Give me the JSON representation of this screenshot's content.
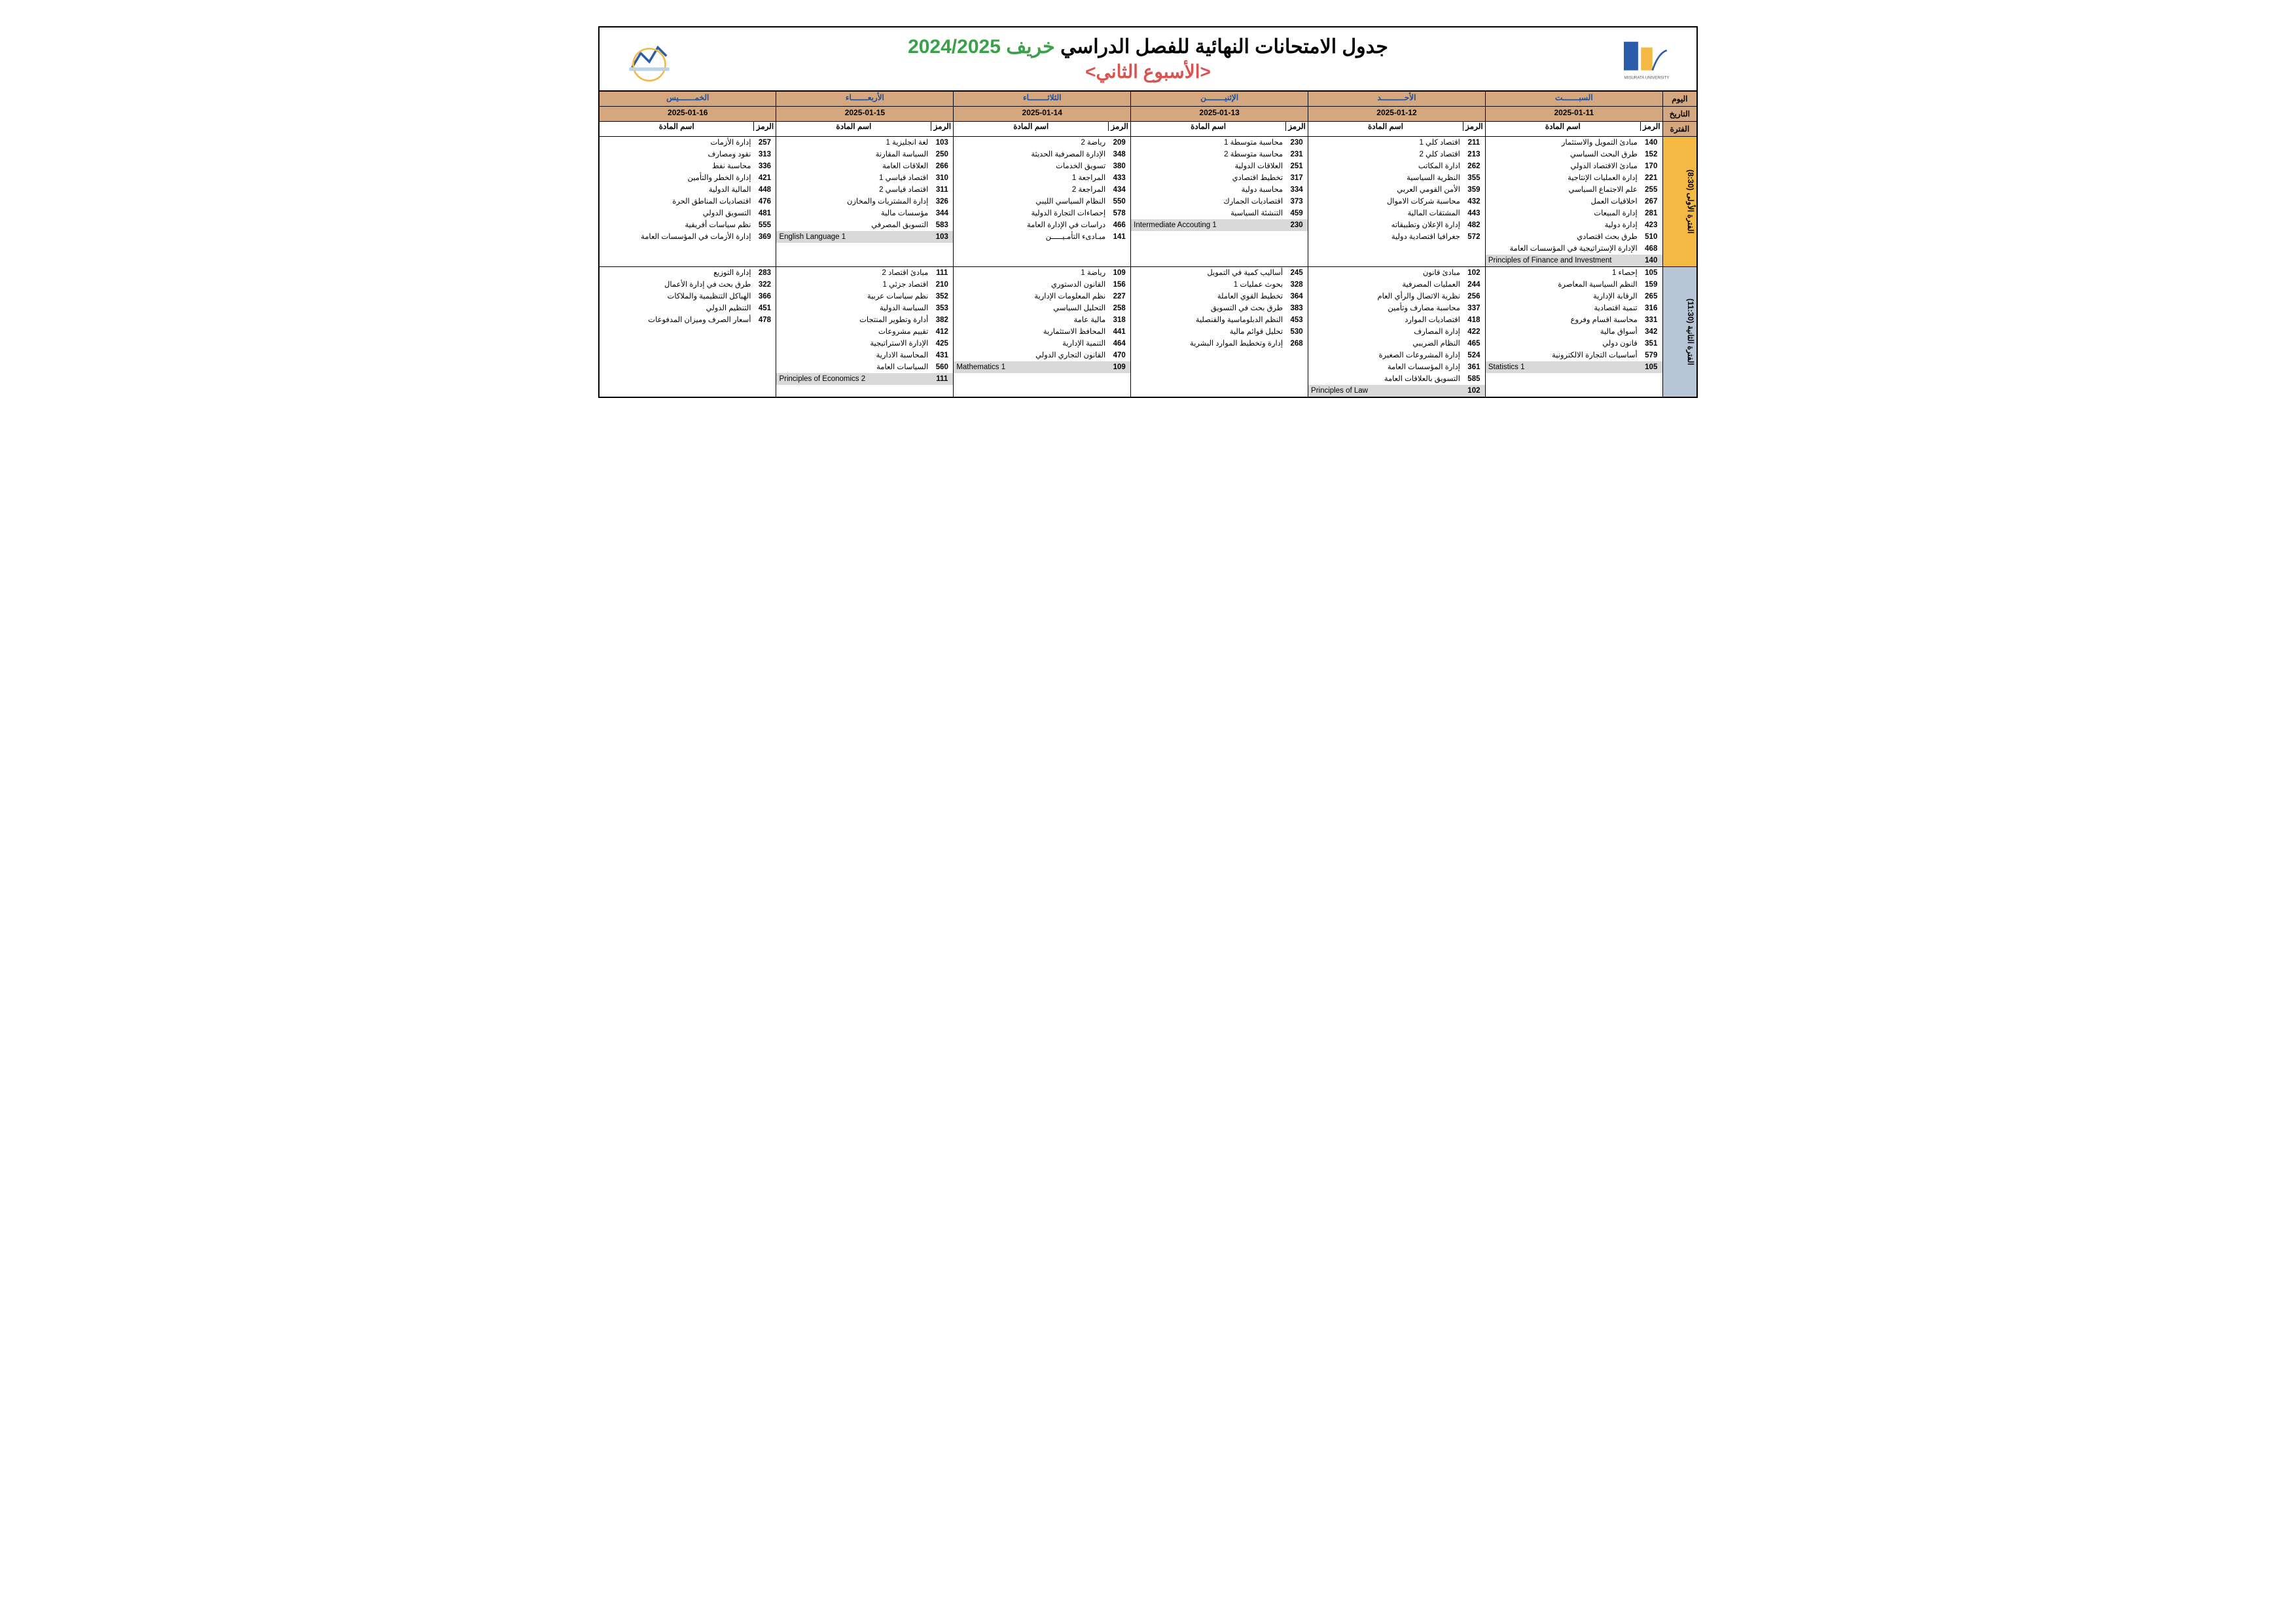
{
  "title_main": "جدول الامتحانات النهائية للفصل الدراسي",
  "title_semester": "خريف 2024/2025",
  "title_week": "الأسبوع الثاني",
  "hdr_day": "اليوم",
  "hdr_date": "التاريخ",
  "hdr_period": "الفترة",
  "hdr_code": "الرمز",
  "hdr_subject": "اسم المادة",
  "colors": {
    "header_bg": "#d5a77e",
    "day_text": "#1e4e9c",
    "semester_text": "#3aa04a",
    "week_text": "#d9534f",
    "period1_bg": "#f4b942",
    "period2_bg": "#b8c5d6",
    "english_row_bg": "#d9d9d9",
    "border": "#000000"
  },
  "days": [
    {
      "name": "السبـــــــت",
      "date": "2025-01-11"
    },
    {
      "name": "الأحــــــــــد",
      "date": "2025-01-12"
    },
    {
      "name": "الإثنيــــــــن",
      "date": "2025-01-13"
    },
    {
      "name": "الثلاثــــــــاء",
      "date": "2025-01-14"
    },
    {
      "name": "الأربعـــــــاء",
      "date": "2025-01-15"
    },
    {
      "name": "الخمـــــــيس",
      "date": "2025-01-16"
    }
  ],
  "periods": [
    {
      "label": "الفترة الأولى (8:30)",
      "bg": "#f4b942",
      "cells": [
        [
          {
            "c": "140",
            "n": "مبادئ التمويل والاستثمار"
          },
          {
            "c": "152",
            "n": "طرق البحث السياسي"
          },
          {
            "c": "170",
            "n": "مبادئ الاقتصاد الدولي"
          },
          {
            "c": "221",
            "n": "إدارة العمليات الإنتاجية"
          },
          {
            "c": "255",
            "n": "علم الاجتماع السياسي"
          },
          {
            "c": "267",
            "n": "اخلاقيات العمل"
          },
          {
            "c": "281",
            "n": "إدارة المبيعات"
          },
          {
            "c": "423",
            "n": "إدارة دولية"
          },
          {
            "c": "510",
            "n": "طرق بحث اقتصادي"
          },
          {
            "c": "468",
            "n": "الإدارة الإستراتيجية في المؤسسات العامة"
          },
          {
            "c": "140",
            "n": "Principles of Finance and Investment",
            "eng": true
          }
        ],
        [
          {
            "c": "211",
            "n": "اقتصاد كلي 1"
          },
          {
            "c": "213",
            "n": "اقتصاد كلي 2"
          },
          {
            "c": "262",
            "n": "ادارة المكاتب"
          },
          {
            "c": "355",
            "n": "النظرية السياسية"
          },
          {
            "c": "359",
            "n": "الأمن القومي العربي"
          },
          {
            "c": "432",
            "n": "محاسبة شركات الاموال"
          },
          {
            "c": "443",
            "n": "المشتقات المالية"
          },
          {
            "c": "482",
            "n": "إدارة الإعلان وتطبيقاته"
          },
          {
            "c": "572",
            "n": "جغرافيا اقتصادية دولية"
          }
        ],
        [
          {
            "c": "230",
            "n": "محاسبة متوسطة 1"
          },
          {
            "c": "231",
            "n": "محاسبة متوسطة 2"
          },
          {
            "c": "251",
            "n": "العلاقات الدولية"
          },
          {
            "c": "317",
            "n": "تخطيط اقتصادي"
          },
          {
            "c": "334",
            "n": "محاسبة دولية"
          },
          {
            "c": "373",
            "n": "اقتصاديات الجمارك"
          },
          {
            "c": "459",
            "n": "التنشئة السياسية"
          },
          {
            "c": "230",
            "n": "Intermediate Accouting 1",
            "eng": true
          }
        ],
        [
          {
            "c": "209",
            "n": "رياضة 2"
          },
          {
            "c": "348",
            "n": "الإدارة المصرفية الحديثة"
          },
          {
            "c": "380",
            "n": "تسويق الخدمات"
          },
          {
            "c": "433",
            "n": "المراجعة 1"
          },
          {
            "c": "434",
            "n": "المراجعة 2"
          },
          {
            "c": "550",
            "n": "النظام السياسي الليبي"
          },
          {
            "c": "578",
            "n": "إحصاءات التجارة الدولية"
          },
          {
            "c": "466",
            "n": "دراسات في الإدارة العامة"
          },
          {
            "c": "141",
            "n": "مبـادىء التأمـيـــــن"
          }
        ],
        [
          {
            "c": "103",
            "n": "لغة انجليزية 1"
          },
          {
            "c": "250",
            "n": "السياسة المقارنة"
          },
          {
            "c": "266",
            "n": "العلاقات العامة"
          },
          {
            "c": "310",
            "n": "اقتصاد قياسي 1"
          },
          {
            "c": "311",
            "n": "اقتصاد قياسي 2"
          },
          {
            "c": "326",
            "n": "إدارة المشتريات والمخازن"
          },
          {
            "c": "344",
            "n": "مؤسسات مالية"
          },
          {
            "c": "583",
            "n": "التسويق المصرفي"
          },
          {
            "c": "103",
            "n": "English Language 1",
            "eng": true
          }
        ],
        [
          {
            "c": "257",
            "n": "إدارة الأزمات"
          },
          {
            "c": "313",
            "n": "نقود ومصارف"
          },
          {
            "c": "336",
            "n": "محاسبة نفط"
          },
          {
            "c": "421",
            "n": "إدارة الخطر والتأمين"
          },
          {
            "c": "448",
            "n": "المالية الدولية"
          },
          {
            "c": "476",
            "n": "اقتصاديات المناطق الحرة"
          },
          {
            "c": "481",
            "n": "التسويق الدولي"
          },
          {
            "c": "555",
            "n": "نظم سياسات أفريقية"
          },
          {
            "c": "369",
            "n": "إدارة الأزمات في المؤسسات العامة"
          }
        ]
      ]
    },
    {
      "label": "الفترة الثانية (11:30)",
      "bg": "#b8c5d6",
      "cells": [
        [
          {
            "c": "105",
            "n": "إحصاء 1"
          },
          {
            "c": "159",
            "n": "النظم السياسية المعاصرة"
          },
          {
            "c": "265",
            "n": "الرقابة الإدارية"
          },
          {
            "c": "316",
            "n": "تنمية اقتصادية"
          },
          {
            "c": "331",
            "n": "محاسبة اقسام وفروع"
          },
          {
            "c": "342",
            "n": "أسواق مالية"
          },
          {
            "c": "351",
            "n": "قانون دولي"
          },
          {
            "c": "579",
            "n": "أساسيات التجارة الالكترونية"
          },
          {
            "c": "105",
            "n": "Statistics 1",
            "eng": true
          }
        ],
        [
          {
            "c": "102",
            "n": "مبادئ قانون"
          },
          {
            "c": "244",
            "n": "العمليات المصرفية"
          },
          {
            "c": "256",
            "n": "نظرية الاتصال والرأي العام"
          },
          {
            "c": "337",
            "n": "محاسبة مصارف وتأمين"
          },
          {
            "c": "418",
            "n": "اقتصاديات الموارد"
          },
          {
            "c": "422",
            "n": "إدارة المصارف"
          },
          {
            "c": "465",
            "n": "النظام الضريبي"
          },
          {
            "c": "524",
            "n": "إدارة المشروعات الصغيرة"
          },
          {
            "c": "361",
            "n": "إدارة المؤسسات العامة"
          },
          {
            "c": "585",
            "n": "التسويق بالعلاقات العامة"
          },
          {
            "c": "102",
            "n": "Principles of Law",
            "eng": true
          }
        ],
        [
          {
            "c": "245",
            "n": "أساليب كمية في التمويل"
          },
          {
            "c": "328",
            "n": "بحوث عمليات 1"
          },
          {
            "c": "364",
            "n": "تخطيط القوي العاملة"
          },
          {
            "c": "383",
            "n": "طرق بحث في التسويق"
          },
          {
            "c": "453",
            "n": "النظم الدبلوماسية والقنصلية"
          },
          {
            "c": "530",
            "n": "تحليل قوائم مالية"
          },
          {
            "c": "268",
            "n": "إدارة وتخطيط الموارد البشرية"
          }
        ],
        [
          {
            "c": "109",
            "n": "رياضة 1"
          },
          {
            "c": "156",
            "n": "القانون الدستوري"
          },
          {
            "c": "227",
            "n": "نظم المعلومات الإدارية"
          },
          {
            "c": "258",
            "n": "التحليل السياسي"
          },
          {
            "c": "318",
            "n": "مالية عامة"
          },
          {
            "c": "441",
            "n": "المحافظ الاستثمارية"
          },
          {
            "c": "464",
            "n": "التنمية الإدارية"
          },
          {
            "c": "470",
            "n": "القانون التجاري الدولي"
          },
          {
            "c": "109",
            "n": "Mathematics 1",
            "eng": true
          }
        ],
        [
          {
            "c": "111",
            "n": "مبادئ اقتصاد 2"
          },
          {
            "c": "210",
            "n": "اقتصاد جزئي 1"
          },
          {
            "c": "352",
            "n": "نظم سياسات عربية"
          },
          {
            "c": "353",
            "n": "السياسة الدولية"
          },
          {
            "c": "382",
            "n": "أدارة وتطوير المنتجات"
          },
          {
            "c": "412",
            "n": "تقييم مشروعات"
          },
          {
            "c": "425",
            "n": "الإدارة الاستراتيجية"
          },
          {
            "c": "431",
            "n": "المحاسبة الادارية"
          },
          {
            "c": "560",
            "n": "السياسات العامة"
          },
          {
            "c": "111",
            "n": "Principles of Economics 2",
            "eng": true
          }
        ],
        [
          {
            "c": "283",
            "n": "إدارة التوزيع"
          },
          {
            "c": "322",
            "n": "طرق بحث في إدارة الأعمال"
          },
          {
            "c": "366",
            "n": "الهياكل التنظيمية والملاكات"
          },
          {
            "c": "451",
            "n": "التنظيم الدولي"
          },
          {
            "c": "478",
            "n": "أسعار الصرف وميزان المدفوعات"
          }
        ]
      ]
    }
  ]
}
